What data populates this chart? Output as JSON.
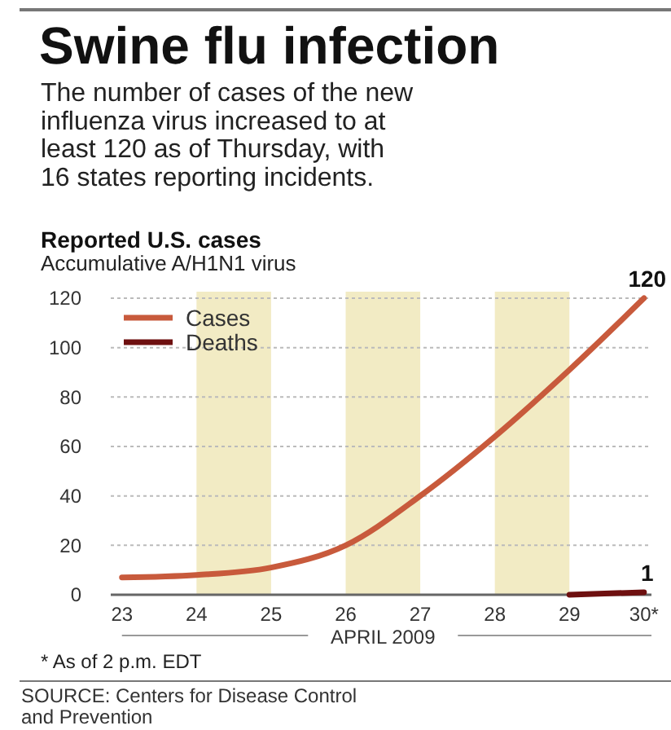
{
  "chart_data": {
    "type": "line",
    "title": "Swine flu infection",
    "subtitle": "The number of cases of the new influenza virus increased to at least 120 as of Thursday, with 16 states reporting incidents.",
    "annotations": [
      "Reported U.S. cases",
      "Accumulative A/H1N1 virus",
      "* As of 2 p.m. EDT",
      "SOURCE: Centers for Disease Control and Prevention"
    ],
    "xlabel": "APRIL 2009",
    "series": [
      {
        "name": "Cases",
        "color": "#c85a3c",
        "x": [
          23,
          24,
          25,
          26,
          27,
          28,
          29,
          30
        ],
        "values": [
          7,
          8,
          11,
          20,
          40,
          64,
          91,
          120
        ],
        "value_labels": [
          null,
          null,
          null,
          null,
          null,
          null,
          null,
          "120"
        ]
      },
      {
        "name": "Deaths",
        "color": "#6e1010",
        "x": [
          29,
          30
        ],
        "values": [
          0,
          1
        ],
        "value_labels": [
          null,
          "1"
        ]
      }
    ],
    "xlim": [
      22.85,
      30.1
    ],
    "xticks": [
      23,
      24,
      25,
      26,
      27,
      28,
      29,
      {
        "value": 30,
        "label": "30*"
      }
    ],
    "ylim": [
      0,
      120
    ],
    "yticks": [
      0,
      20,
      40,
      60,
      80,
      100,
      120
    ],
    "bands": [
      {
        "axis": "x",
        "from": 24,
        "to": 25,
        "color": "#f2ebc4"
      },
      {
        "axis": "x",
        "from": 26,
        "to": 27,
        "color": "#f2ebc4"
      },
      {
        "axis": "x",
        "from": 28,
        "to": 29,
        "color": "#f2ebc4"
      }
    ],
    "grid": "y",
    "legend": "top left",
    "marker": "none",
    "line_style": "solid"
  }
}
